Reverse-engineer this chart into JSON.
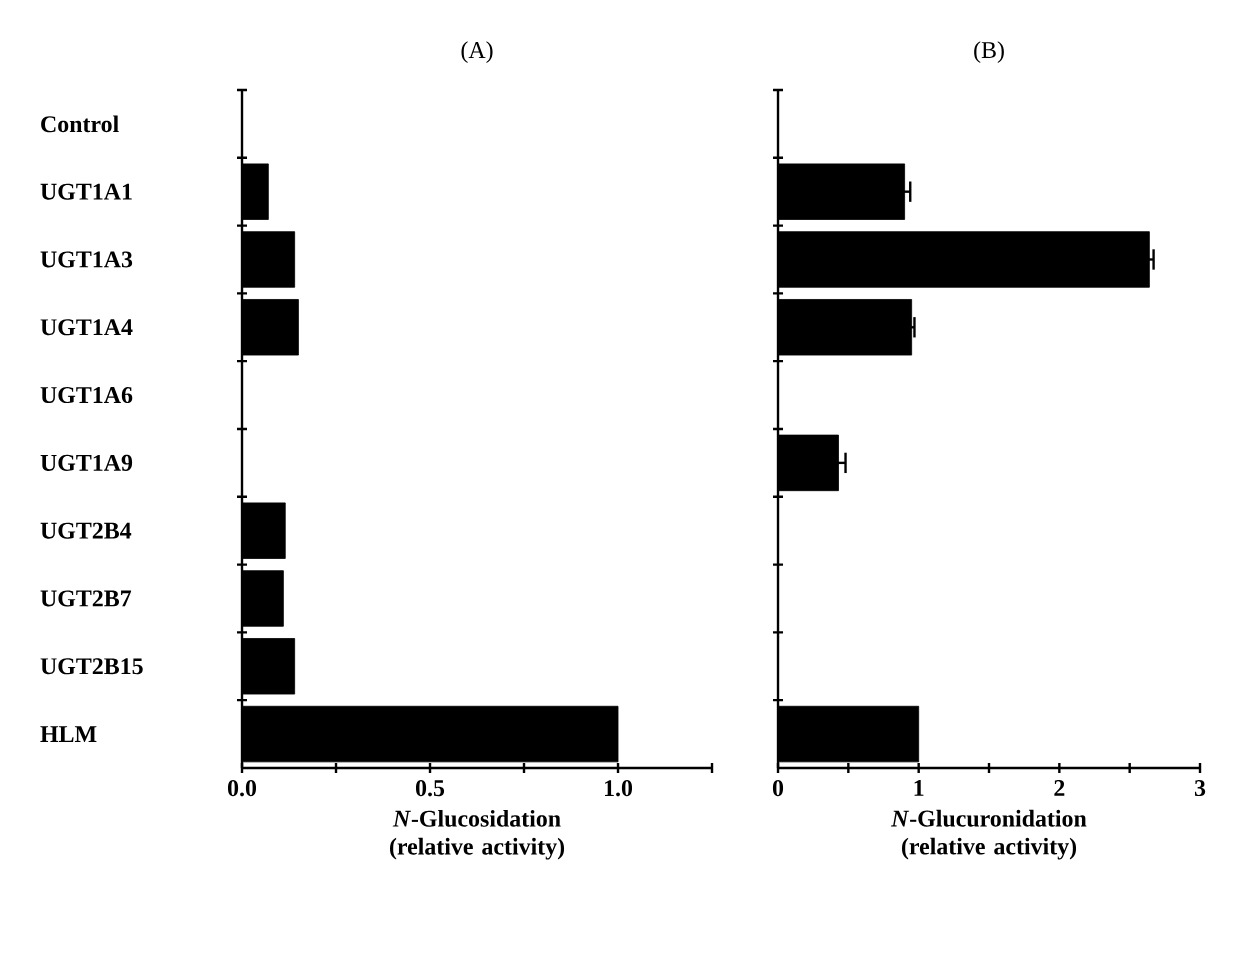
{
  "chart_data": [
    {
      "type": "bar",
      "orientation": "horizontal",
      "title": "(A)",
      "xlabel": "*N*-Glucosidation (relative activity)",
      "categories": [
        "Control",
        "UGT1A1",
        "UGT1A3",
        "UGT1A4",
        "UGT1A6",
        "UGT1A9",
        "UGT2B4",
        "UGT2B7",
        "UGT2B15",
        "HLM"
      ],
      "values": [
        0,
        0.07,
        0.14,
        0.15,
        0,
        0,
        0.115,
        0.11,
        0.14,
        1.0
      ],
      "color": "#000000",
      "xlim": [
        0,
        1.25
      ],
      "xticks": [
        {
          "value": 0,
          "label": "0.0"
        },
        {
          "value": 0.25,
          "label": null
        },
        0.5,
        {
          "value": 0.75,
          "label": null
        },
        {
          "value": 1,
          "label": "1.0"
        },
        {
          "value": 1.25,
          "label": null
        }
      ]
    },
    {
      "type": "bar",
      "orientation": "horizontal",
      "title": "(B)",
      "xlabel": "*N*-Glucuronidation (relative activity)",
      "categories": [
        null,
        null,
        null,
        null,
        null,
        null,
        null,
        null,
        null,
        null
      ],
      "values": [
        0,
        0.9,
        2.64,
        0.95,
        0,
        0.43,
        0,
        0,
        0,
        1.0
      ],
      "errors": [
        null,
        0.04,
        0.03,
        0.02,
        null,
        0.05,
        null,
        null,
        null,
        null
      ],
      "color": "#000000",
      "xlim": [
        0,
        3
      ],
      "xticks": [
        0,
        {
          "value": 0.5,
          "label": null
        },
        1,
        {
          "value": 1.5,
          "label": null
        },
        2,
        {
          "value": 2.5,
          "label": null
        },
        3
      ],
      "tick_labels": "x"
    }
  ]
}
